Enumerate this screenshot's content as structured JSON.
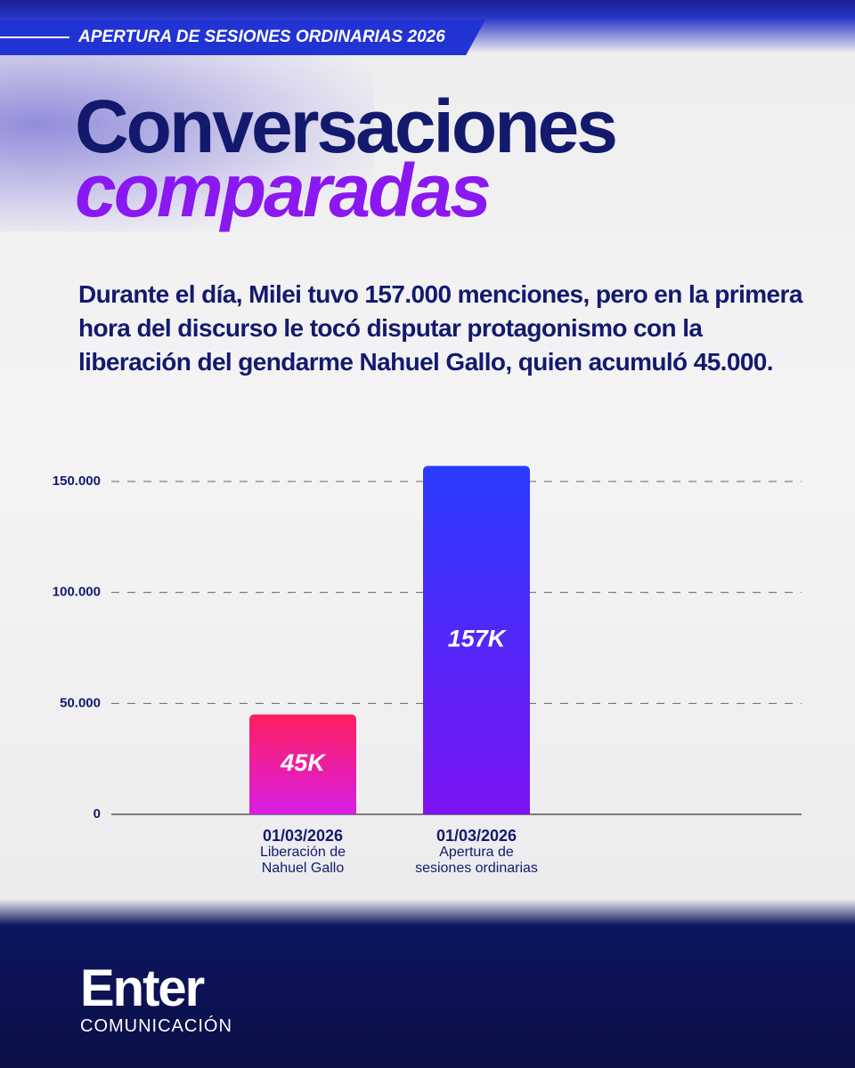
{
  "header": "APERTURA DE SESIONES ORDINARIAS 2026",
  "brand": {
    "name": "Enter",
    "tagline": "COMUNICACIÓN"
  },
  "chart_data": {
    "type": "bar",
    "title": [
      "Conversaciones",
      "comparadas"
    ],
    "subtitle": "Durante el día, Milei tuvo 157.000 menciones, pero en la primera hora del discurso le tocó disputar protagonismo con la liberación del gendarme Nahuel Gallo, quien acumuló 45.000.",
    "categories": [
      [
        "01/03/2026",
        "Liberación de",
        "Nahuel Gallo"
      ],
      [
        "01/03/2026",
        "Apertura de",
        "sesiones ordinarias"
      ]
    ],
    "values": [
      45000,
      157000
    ],
    "value_labels": [
      "45K",
      "157K"
    ],
    "colors": [
      [
        "#ff1f5e",
        "#d91ee6"
      ],
      [
        "#2a3bff",
        "#7b14f2"
      ]
    ],
    "ylim": [
      0,
      160000
    ],
    "yticks": [
      0,
      {
        "value": 50000,
        "label": "50.000"
      },
      {
        "value": 100000,
        "label": "100.000"
      },
      {
        "value": 150000,
        "label": "150.000"
      }
    ],
    "grid": true
  }
}
